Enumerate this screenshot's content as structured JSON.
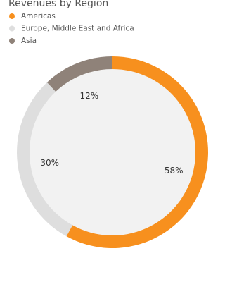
{
  "chart_data": {
    "type": "donut",
    "title": "Revenues by Region",
    "categories": [
      "Americas",
      "Europe, Middle East and Africa",
      "Asia"
    ],
    "values": [
      58,
      30,
      12
    ],
    "value_labels": [
      "58%",
      "30%",
      "12%"
    ],
    "colors": [
      "#f7901e",
      "#dedede",
      "#8f8279"
    ]
  }
}
